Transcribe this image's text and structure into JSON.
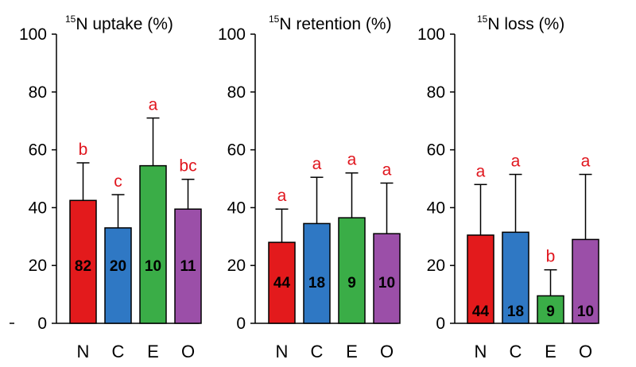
{
  "chart_data": [
    {
      "type": "bar",
      "title_sup": "15",
      "title": "N uptake (%)",
      "categories": [
        "N",
        "C",
        "E",
        "O"
      ],
      "values": [
        42.5,
        33,
        54.5,
        39.5
      ],
      "errors": [
        13,
        11.5,
        16.5,
        10.3
      ],
      "sig_letters": [
        "b",
        "c",
        "a",
        "bc"
      ],
      "n_labels": [
        "82",
        "20",
        "10",
        "11"
      ],
      "colors": [
        "#e31a1c",
        "#2f78c4",
        "#3aad47",
        "#9b4fa8"
      ],
      "ylim": [
        0,
        100
      ],
      "yticks": [
        "0",
        "20",
        "40",
        "60",
        "80",
        "100"
      ]
    },
    {
      "type": "bar",
      "title_sup": "15",
      "title": "N retention (%)",
      "categories": [
        "N",
        "C",
        "E",
        "O"
      ],
      "values": [
        28,
        34.5,
        36.5,
        31
      ],
      "errors": [
        11.5,
        16,
        15.5,
        17.5
      ],
      "sig_letters": [
        "a",
        "a",
        "a",
        "a"
      ],
      "n_labels": [
        "44",
        "18",
        "9",
        "10"
      ],
      "colors": [
        "#e31a1c",
        "#2f78c4",
        "#3aad47",
        "#9b4fa8"
      ],
      "ylim": [
        0,
        100
      ],
      "yticks": [
        "0",
        "20",
        "40",
        "60",
        "80",
        "100"
      ]
    },
    {
      "type": "bar",
      "title_sup": "15",
      "title": "N loss (%)",
      "categories": [
        "N",
        "C",
        "E",
        "O"
      ],
      "values": [
        30.5,
        31.5,
        9.5,
        29
      ],
      "errors": [
        17.5,
        20,
        9,
        22.5
      ],
      "sig_letters": [
        "a",
        "a",
        "b",
        "a"
      ],
      "n_labels": [
        "44",
        "18",
        "9",
        "10"
      ],
      "colors": [
        "#e31a1c",
        "#2f78c4",
        "#3aad47",
        "#9b4fa8"
      ],
      "ylim": [
        0,
        100
      ],
      "yticks": [
        "0",
        "20",
        "40",
        "60",
        "80",
        "100"
      ]
    }
  ]
}
